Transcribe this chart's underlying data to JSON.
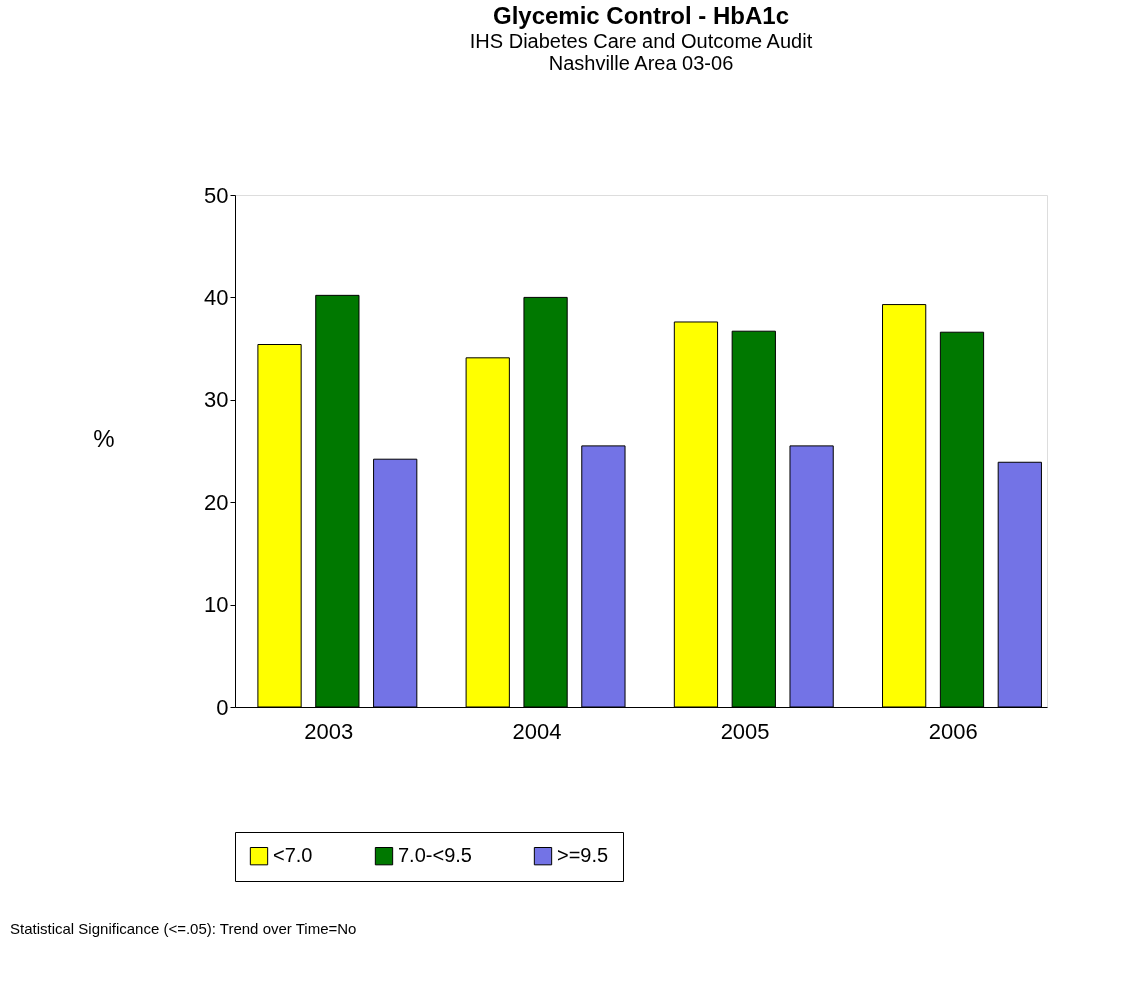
{
  "chart_data": {
    "type": "bar",
    "title": "Glycemic Control - HbA1c",
    "subtitle": "IHS Diabetes Care and Outcome Audit\nNashville Area 03-06",
    "ylabel": "%",
    "categories": [
      "2003",
      "2004",
      "2005",
      "2006"
    ],
    "series": [
      {
        "name": "<7.0",
        "color": "#ffff00",
        "values": [
          35.4,
          34.1,
          37.6,
          39.3
        ]
      },
      {
        "name": "7.0-<9.5",
        "color": "#007800",
        "values": [
          40.2,
          40.0,
          36.7,
          36.6
        ]
      },
      {
        "name": ">=9.5",
        "color": "#7373e6",
        "values": [
          24.2,
          25.5,
          25.5,
          23.9
        ]
      }
    ],
    "ylim": [
      0,
      50
    ],
    "yticks": [
      0,
      10,
      20,
      30,
      40,
      50
    ],
    "grid": false,
    "legend": "bottom",
    "annotations": [
      "Statistical Significance (<=.05): Trend over Time=No"
    ]
  }
}
